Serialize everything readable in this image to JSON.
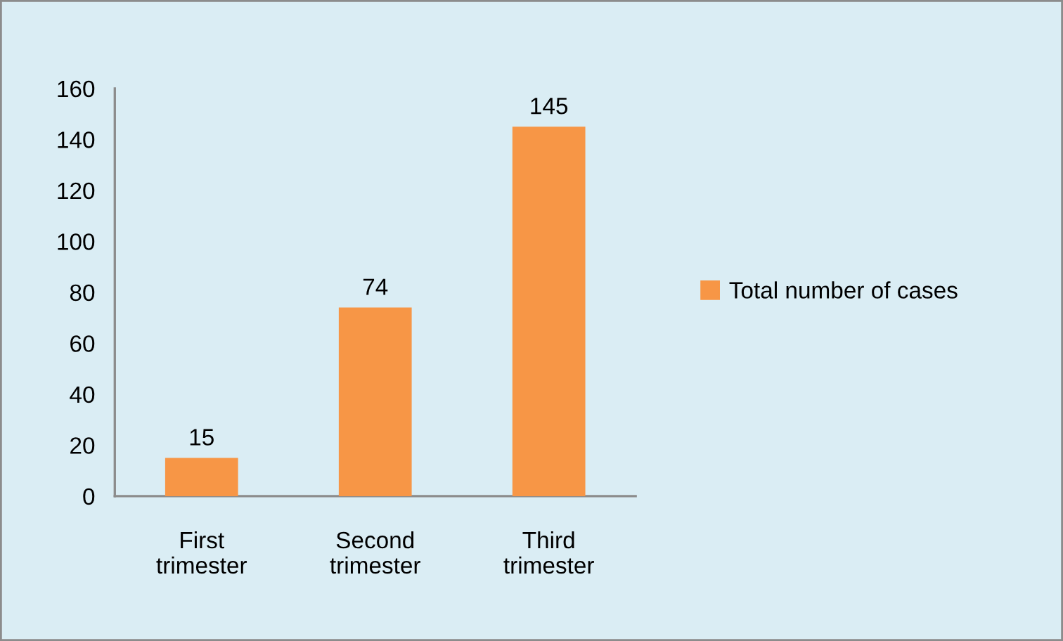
{
  "chart_data": {
    "type": "bar",
    "categories": [
      "First trimester",
      "Second trimester",
      "Third trimester"
    ],
    "series": [
      {
        "name": "Total number of cases",
        "color": "#f79646",
        "values": [
          15,
          74,
          145
        ]
      }
    ],
    "ylim": [
      0,
      160
    ],
    "yticks": [
      0,
      20,
      40,
      60,
      80,
      100,
      120,
      140,
      160
    ],
    "data_labels": true,
    "grid": false,
    "legend": "right"
  }
}
